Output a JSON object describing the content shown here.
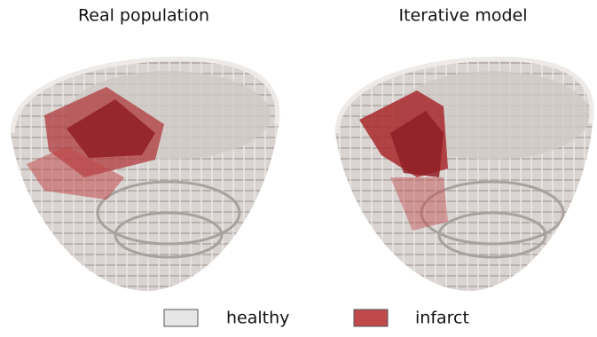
{
  "panels": [
    {
      "title": "Real population"
    },
    {
      "title": "Iterative model"
    }
  ],
  "legend": [
    {
      "label": "healthy",
      "color": "#e6e6e6"
    },
    {
      "label": "infarct",
      "color": "#c0494b"
    }
  ]
}
